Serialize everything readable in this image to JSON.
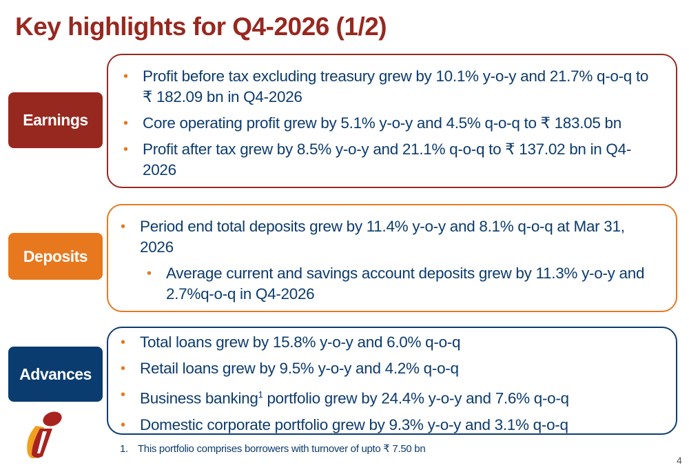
{
  "title": "Key highlights for Q4-2026 (1/2)",
  "colors": {
    "earnings": "#97281f",
    "deposits": "#e8781d",
    "advances": "#0b3c70",
    "text": "#0c3b6e",
    "bullet": "#e8781d"
  },
  "sections": [
    {
      "label": "Earnings",
      "bullets": [
        "Profit before tax excluding treasury grew by 10.1% y-o-y and 21.7% q-o-q to ₹ 182.09 bn in Q4-2026",
        "Core operating profit grew by 5.1% y-o-y and 4.5% q-o-q to ₹ 183.05 bn",
        "Profit after tax grew by 8.5% y-o-y and 21.1% q-o-q to  ₹ 137.02 bn in Q4-2026"
      ]
    },
    {
      "label": "Deposits",
      "bullets": [
        "Period end total deposits grew by 11.4% y-o-y and 8.1% q-o-q at Mar 31, 2026",
        "Average current and savings account deposits grew by 11.3% y-o-y and 2.7%q-o-q in Q4-2026"
      ]
    },
    {
      "label": "Advances",
      "bullets": [
        "Total loans grew by 15.8% y-o-y and 6.0% q-o-q",
        "Retail loans grew by 9.5% y-o-y and 4.2% q-o-q",
        {
          "pre": "Business banking",
          "sup": "1",
          "post": " portfolio grew by 24.4% y-o-y and 7.6% q-o-q"
        },
        "Domestic corporate portfolio grew by 9.3% y-o-y and 3.1% q-o-q"
      ]
    }
  ],
  "footnote": {
    "number": "1.",
    "text": "This portfolio comprises borrowers with turnover of upto ₹ 7.50 bn"
  },
  "page_number": "4",
  "logo_icon": "bank-logo-i"
}
